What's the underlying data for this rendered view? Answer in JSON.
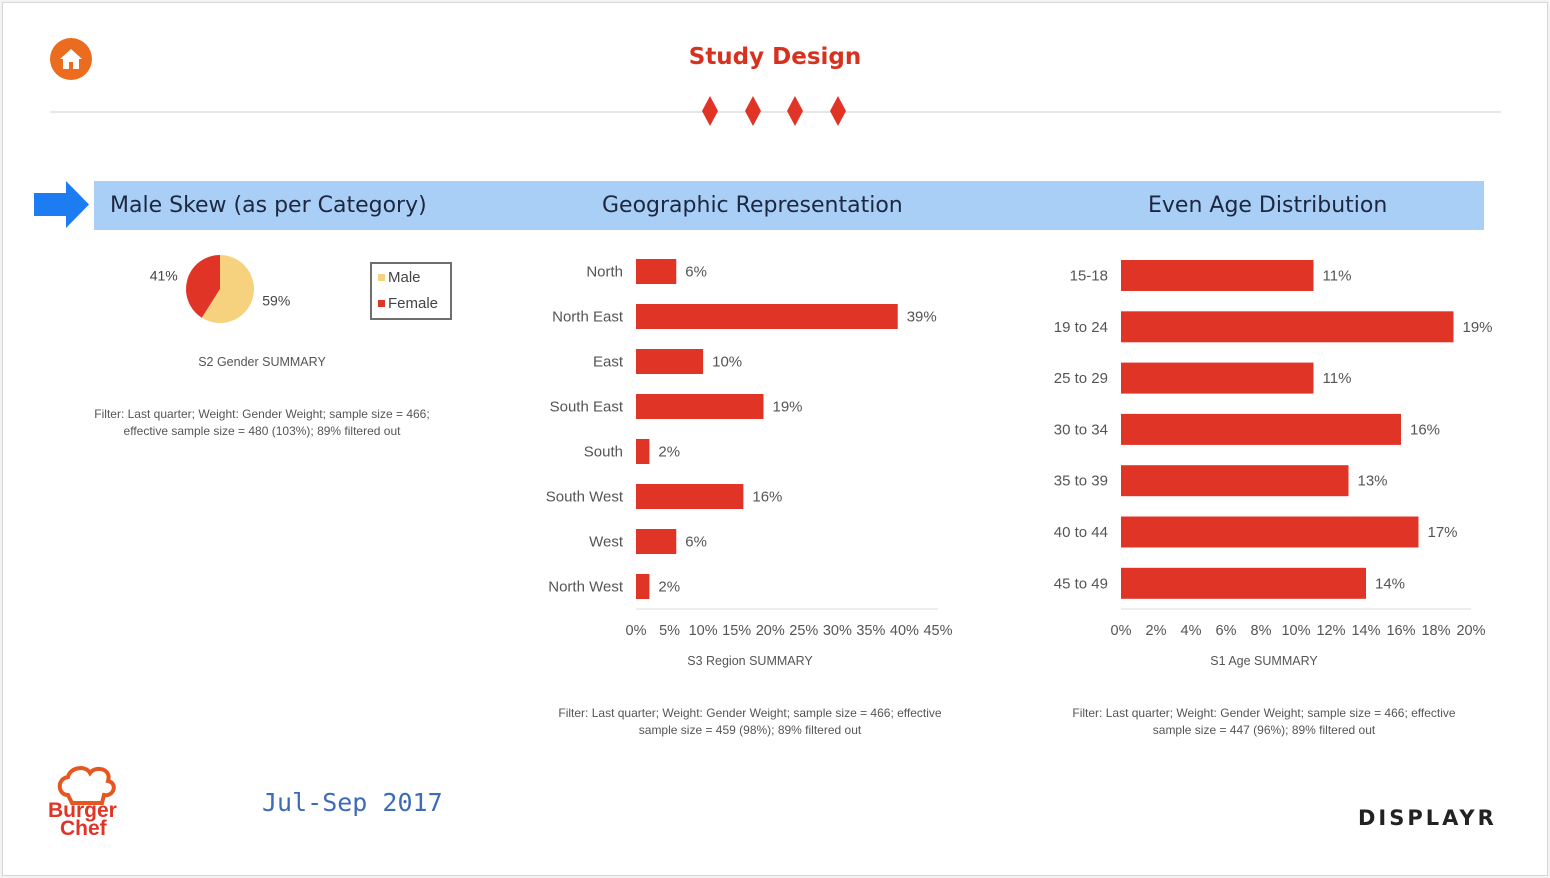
{
  "header": {
    "title": "Study Design"
  },
  "sections": {
    "gender": "Male Skew (as per Category)",
    "geo": "Geographic Representation",
    "age": "Even Age Distribution"
  },
  "gender_chart": {
    "caption": "S2 Gender SUMMARY",
    "filter_line1": "Filter: Last quarter; Weight: Gender Weight; sample size = 466;",
    "filter_line2": "effective sample size = 480 (103%); 89% filtered out",
    "legend": [
      "Male",
      "Female"
    ]
  },
  "region_chart": {
    "caption": "S3 Region SUMMARY",
    "filter_line1": "Filter: Last quarter; Weight: Gender Weight; sample size = 466; effective",
    "filter_line2": "sample size = 459 (98%); 89% filtered out"
  },
  "age_chart": {
    "caption": "S1 Age SUMMARY",
    "filter_line1": "Filter: Last quarter; Weight: Gender Weight; sample size = 466; effective",
    "filter_line2": "sample size = 447 (96%); 89% filtered out"
  },
  "footer": {
    "brand_line1": "Burger",
    "brand_line2": "Chef",
    "date": "Jul-Sep 2017",
    "company": "DISPLAYR"
  },
  "colors": {
    "accent_red": "#e03427",
    "male_yellow": "#f6d27e",
    "band_blue": "#a9cff7",
    "arrow_blue": "#1e7cf2",
    "home_orange": "#ec6c1f"
  },
  "chart_data": [
    {
      "type": "pie",
      "labels": [
        "Male",
        "Female"
      ],
      "values": [
        59,
        41
      ],
      "value_labels": [
        "59%",
        "41%"
      ],
      "colors": [
        "#f6d27e",
        "#e03427"
      ]
    },
    {
      "type": "bar",
      "orientation": "horizontal",
      "categories": [
        "North",
        "North East",
        "East",
        "South East",
        "South",
        "South West",
        "West",
        "North West"
      ],
      "values": [
        6,
        39,
        10,
        19,
        2,
        16,
        6,
        2
      ],
      "value_labels": [
        "6%",
        "39%",
        "10%",
        "19%",
        "2%",
        "16%",
        "6%",
        "2%"
      ],
      "xlim": [
        0,
        45
      ],
      "xticks": [
        "0%",
        "5%",
        "10%",
        "15%",
        "20%",
        "25%",
        "30%",
        "35%",
        "40%",
        "45%"
      ]
    },
    {
      "type": "bar",
      "orientation": "horizontal",
      "categories": [
        "15-18",
        "19 to 24",
        "25 to 29",
        "30 to 34",
        "35 to 39",
        "40 to 44",
        "45 to 49"
      ],
      "values": [
        11,
        19,
        11,
        16,
        13,
        17,
        14
      ],
      "value_labels": [
        "11%",
        "19%",
        "11%",
        "16%",
        "13%",
        "17%",
        "14%"
      ],
      "xlim": [
        0,
        20
      ],
      "xticks": [
        "0%",
        "2%",
        "4%",
        "6%",
        "8%",
        "10%",
        "12%",
        "14%",
        "16%",
        "18%",
        "20%"
      ]
    }
  ]
}
